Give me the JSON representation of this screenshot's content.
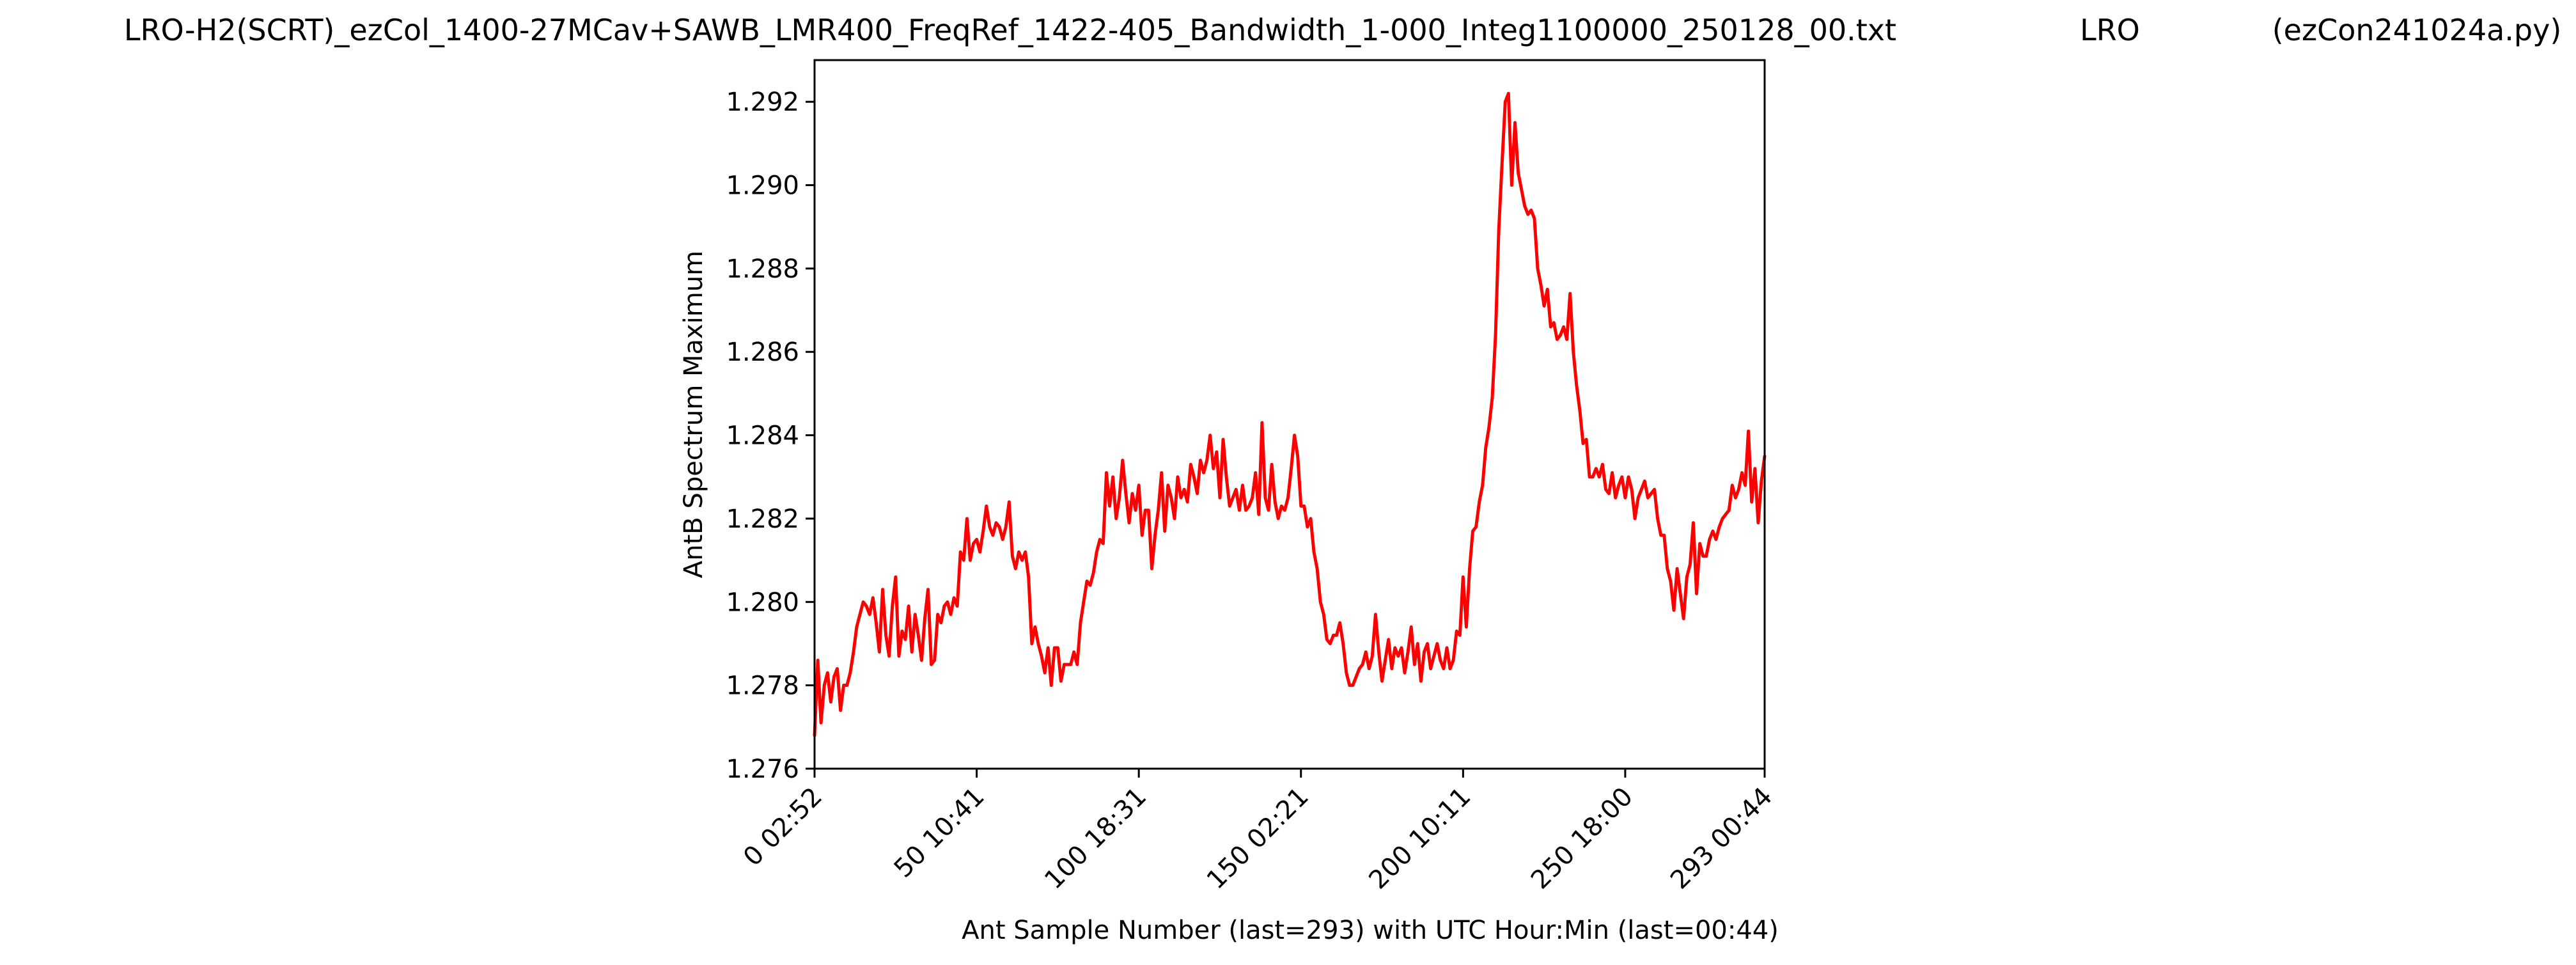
{
  "header": {
    "filename": "LRO-H2(SCRT)_ezCol_1400-27MCav+SAWB_LMR400_FreqRef_1422-405_Bandwidth_1-000_Integ1100000_250128_00.txt",
    "station": "LRO",
    "program": "(ezCon241024a.py)"
  },
  "chart_data": {
    "type": "line",
    "xlabel": "Ant Sample Number (last=293) with UTC Hour:Min (last=00:44)",
    "ylabel": "AntB Spectrum Maximum",
    "xlim": [
      0,
      293
    ],
    "ylim": [
      1.276,
      1.293
    ],
    "x_ticks": [
      {
        "value": 0,
        "label": "0  02:52"
      },
      {
        "value": 50,
        "label": "50  10:41"
      },
      {
        "value": 100,
        "label": "100  18:31"
      },
      {
        "value": 150,
        "label": "150  02:21"
      },
      {
        "value": 200,
        "label": "200  10:11"
      },
      {
        "value": 250,
        "label": "250  18:00"
      },
      {
        "value": 293,
        "label": "293  00:44"
      }
    ],
    "y_ticks": [
      {
        "value": 1.276,
        "label": "1.276"
      },
      {
        "value": 1.278,
        "label": "1.278"
      },
      {
        "value": 1.28,
        "label": "1.280"
      },
      {
        "value": 1.282,
        "label": "1.282"
      },
      {
        "value": 1.284,
        "label": "1.284"
      },
      {
        "value": 1.286,
        "label": "1.286"
      },
      {
        "value": 1.288,
        "label": "1.288"
      },
      {
        "value": 1.29,
        "label": "1.290"
      },
      {
        "value": 1.292,
        "label": "1.292"
      }
    ],
    "grid": false,
    "series": [
      {
        "color": "#ff0000",
        "points": [
          [
            0,
            1.2768
          ],
          [
            1,
            1.2786
          ],
          [
            2,
            1.2771
          ],
          [
            3,
            1.278
          ],
          [
            4,
            1.2783
          ],
          [
            5,
            1.2776
          ],
          [
            6,
            1.2782
          ],
          [
            7,
            1.2784
          ],
          [
            8,
            1.2774
          ],
          [
            9,
            1.278
          ],
          [
            10,
            1.278
          ],
          [
            11,
            1.2783
          ],
          [
            12,
            1.2788
          ],
          [
            13,
            1.2794
          ],
          [
            14,
            1.2797
          ],
          [
            15,
            1.28
          ],
          [
            16,
            1.2799
          ],
          [
            17,
            1.2797
          ],
          [
            18,
            1.2801
          ],
          [
            19,
            1.2795
          ],
          [
            20,
            1.2788
          ],
          [
            21,
            1.2803
          ],
          [
            22,
            1.2792
          ],
          [
            23,
            1.2787
          ],
          [
            24,
            1.2799
          ],
          [
            25,
            1.2806
          ],
          [
            26,
            1.2787
          ],
          [
            27,
            1.2793
          ],
          [
            28,
            1.2791
          ],
          [
            29,
            1.2799
          ],
          [
            30,
            1.2788
          ],
          [
            31,
            1.2797
          ],
          [
            32,
            1.2792
          ],
          [
            33,
            1.2786
          ],
          [
            34,
            1.2796
          ],
          [
            35,
            1.2803
          ],
          [
            36,
            1.2785
          ],
          [
            37,
            1.2786
          ],
          [
            38,
            1.2797
          ],
          [
            39,
            1.2795
          ],
          [
            40,
            1.2799
          ],
          [
            41,
            1.28
          ],
          [
            42,
            1.2797
          ],
          [
            43,
            1.2801
          ],
          [
            44,
            1.2799
          ],
          [
            45,
            1.2812
          ],
          [
            46,
            1.281
          ],
          [
            47,
            1.282
          ],
          [
            48,
            1.281
          ],
          [
            49,
            1.2814
          ],
          [
            50,
            1.2815
          ],
          [
            51,
            1.2812
          ],
          [
            52,
            1.2817
          ],
          [
            53,
            1.2823
          ],
          [
            54,
            1.2818
          ],
          [
            55,
            1.2816
          ],
          [
            56,
            1.2819
          ],
          [
            57,
            1.2818
          ],
          [
            58,
            1.2815
          ],
          [
            59,
            1.2818
          ],
          [
            60,
            1.2824
          ],
          [
            61,
            1.2811
          ],
          [
            62,
            1.2808
          ],
          [
            63,
            1.2812
          ],
          [
            64,
            1.281
          ],
          [
            65,
            1.2812
          ],
          [
            66,
            1.2806
          ],
          [
            67,
            1.279
          ],
          [
            68,
            1.2794
          ],
          [
            69,
            1.279
          ],
          [
            70,
            1.2787
          ],
          [
            71,
            1.2783
          ],
          [
            72,
            1.2789
          ],
          [
            73,
            1.278
          ],
          [
            74,
            1.2789
          ],
          [
            75,
            1.2789
          ],
          [
            76,
            1.2781
          ],
          [
            77,
            1.2785
          ],
          [
            78,
            1.2785
          ],
          [
            79,
            1.2785
          ],
          [
            80,
            1.2788
          ],
          [
            81,
            1.2785
          ],
          [
            82,
            1.2795
          ],
          [
            83,
            1.28
          ],
          [
            84,
            1.2805
          ],
          [
            85,
            1.2804
          ],
          [
            86,
            1.2807
          ],
          [
            87,
            1.2812
          ],
          [
            88,
            1.2815
          ],
          [
            89,
            1.2814
          ],
          [
            90,
            1.2831
          ],
          [
            91,
            1.2823
          ],
          [
            92,
            1.283
          ],
          [
            93,
            1.282
          ],
          [
            94,
            1.2825
          ],
          [
            95,
            1.2834
          ],
          [
            96,
            1.2826
          ],
          [
            97,
            1.2819
          ],
          [
            98,
            1.2826
          ],
          [
            99,
            1.2822
          ],
          [
            100,
            1.2828
          ],
          [
            101,
            1.2816
          ],
          [
            102,
            1.2822
          ],
          [
            103,
            1.2822
          ],
          [
            104,
            1.2808
          ],
          [
            105,
            1.2816
          ],
          [
            106,
            1.2822
          ],
          [
            107,
            1.2831
          ],
          [
            108,
            1.2817
          ],
          [
            109,
            1.2828
          ],
          [
            110,
            1.2825
          ],
          [
            111,
            1.282
          ],
          [
            112,
            1.283
          ],
          [
            113,
            1.2825
          ],
          [
            114,
            1.2827
          ],
          [
            115,
            1.2824
          ],
          [
            116,
            1.2833
          ],
          [
            117,
            1.283
          ],
          [
            118,
            1.2826
          ],
          [
            119,
            1.2834
          ],
          [
            120,
            1.2831
          ],
          [
            121,
            1.2834
          ],
          [
            122,
            1.284
          ],
          [
            123,
            1.2832
          ],
          [
            124,
            1.2836
          ],
          [
            125,
            1.2825
          ],
          [
            126,
            1.2839
          ],
          [
            127,
            1.283
          ],
          [
            128,
            1.2823
          ],
          [
            129,
            1.2825
          ],
          [
            130,
            1.2827
          ],
          [
            131,
            1.2822
          ],
          [
            132,
            1.2828
          ],
          [
            133,
            1.2822
          ],
          [
            134,
            1.2823
          ],
          [
            135,
            1.2825
          ],
          [
            136,
            1.2831
          ],
          [
            137,
            1.2821
          ],
          [
            138,
            1.2843
          ],
          [
            139,
            1.2825
          ],
          [
            140,
            1.2822
          ],
          [
            141,
            1.2833
          ],
          [
            142,
            1.2824
          ],
          [
            143,
            1.282
          ],
          [
            144,
            1.2823
          ],
          [
            145,
            1.2822
          ],
          [
            146,
            1.2825
          ],
          [
            147,
            1.2832
          ],
          [
            148,
            1.284
          ],
          [
            149,
            1.2835
          ],
          [
            150,
            1.2823
          ],
          [
            151,
            1.2823
          ],
          [
            152,
            1.2818
          ],
          [
            153,
            1.282
          ],
          [
            154,
            1.2812
          ],
          [
            155,
            1.2808
          ],
          [
            156,
            1.28
          ],
          [
            157,
            1.2797
          ],
          [
            158,
            1.2791
          ],
          [
            159,
            1.279
          ],
          [
            160,
            1.2792
          ],
          [
            161,
            1.2792
          ],
          [
            162,
            1.2795
          ],
          [
            163,
            1.279
          ],
          [
            164,
            1.2783
          ],
          [
            165,
            1.278
          ],
          [
            166,
            1.278
          ],
          [
            167,
            1.2782
          ],
          [
            168,
            1.2784
          ],
          [
            169,
            1.2785
          ],
          [
            170,
            1.2788
          ],
          [
            171,
            1.2784
          ],
          [
            172,
            1.2787
          ],
          [
            173,
            1.2797
          ],
          [
            174,
            1.2788
          ],
          [
            175,
            1.2781
          ],
          [
            176,
            1.2786
          ],
          [
            177,
            1.2791
          ],
          [
            178,
            1.2784
          ],
          [
            179,
            1.2789
          ],
          [
            180,
            1.2787
          ],
          [
            181,
            1.2789
          ],
          [
            182,
            1.2783
          ],
          [
            183,
            1.2788
          ],
          [
            184,
            1.2794
          ],
          [
            185,
            1.2785
          ],
          [
            186,
            1.279
          ],
          [
            187,
            1.2781
          ],
          [
            188,
            1.2788
          ],
          [
            189,
            1.279
          ],
          [
            190,
            1.2784
          ],
          [
            191,
            1.2787
          ],
          [
            192,
            1.279
          ],
          [
            193,
            1.2786
          ],
          [
            194,
            1.2784
          ],
          [
            195,
            1.2789
          ],
          [
            196,
            1.2784
          ],
          [
            197,
            1.2786
          ],
          [
            198,
            1.2793
          ],
          [
            199,
            1.2792
          ],
          [
            200,
            1.2806
          ],
          [
            201,
            1.2794
          ],
          [
            202,
            1.2808
          ],
          [
            203,
            1.2817
          ],
          [
            204,
            1.2818
          ],
          [
            205,
            1.2824
          ],
          [
            206,
            1.2828
          ],
          [
            207,
            1.2837
          ],
          [
            208,
            1.2842
          ],
          [
            209,
            1.2849
          ],
          [
            210,
            1.2864
          ],
          [
            211,
            1.2889
          ],
          [
            212,
            1.2905
          ],
          [
            213,
            1.292
          ],
          [
            214,
            1.2922
          ],
          [
            215,
            1.29
          ],
          [
            216,
            1.2915
          ],
          [
            217,
            1.2903
          ],
          [
            218,
            1.2899
          ],
          [
            219,
            1.2895
          ],
          [
            220,
            1.2893
          ],
          [
            221,
            1.2894
          ],
          [
            222,
            1.2892
          ],
          [
            223,
            1.288
          ],
          [
            224,
            1.2876
          ],
          [
            225,
            1.2871
          ],
          [
            226,
            1.2875
          ],
          [
            227,
            1.2866
          ],
          [
            228,
            1.2867
          ],
          [
            229,
            1.2863
          ],
          [
            230,
            1.2864
          ],
          [
            231,
            1.2866
          ],
          [
            232,
            1.2863
          ],
          [
            233,
            1.2874
          ],
          [
            234,
            1.286
          ],
          [
            235,
            1.2852
          ],
          [
            236,
            1.2846
          ],
          [
            237,
            1.2838
          ],
          [
            238,
            1.2839
          ],
          [
            239,
            1.283
          ],
          [
            240,
            1.283
          ],
          [
            241,
            1.2832
          ],
          [
            242,
            1.283
          ],
          [
            243,
            1.2833
          ],
          [
            244,
            1.2827
          ],
          [
            245,
            1.2826
          ],
          [
            246,
            1.2831
          ],
          [
            247,
            1.2825
          ],
          [
            248,
            1.2828
          ],
          [
            249,
            1.283
          ],
          [
            250,
            1.2825
          ],
          [
            251,
            1.283
          ],
          [
            252,
            1.2827
          ],
          [
            253,
            1.282
          ],
          [
            254,
            1.2825
          ],
          [
            255,
            1.2827
          ],
          [
            256,
            1.2829
          ],
          [
            257,
            1.2825
          ],
          [
            258,
            1.2826
          ],
          [
            259,
            1.2827
          ],
          [
            260,
            1.282
          ],
          [
            261,
            1.2816
          ],
          [
            262,
            1.2816
          ],
          [
            263,
            1.2808
          ],
          [
            264,
            1.2805
          ],
          [
            265,
            1.2798
          ],
          [
            266,
            1.2808
          ],
          [
            267,
            1.2802
          ],
          [
            268,
            1.2796
          ],
          [
            269,
            1.2806
          ],
          [
            270,
            1.2809
          ],
          [
            271,
            1.2819
          ],
          [
            272,
            1.2802
          ],
          [
            273,
            1.2814
          ],
          [
            274,
            1.2811
          ],
          [
            275,
            1.2811
          ],
          [
            276,
            1.2815
          ],
          [
            277,
            1.2817
          ],
          [
            278,
            1.2815
          ],
          [
            279,
            1.2818
          ],
          [
            280,
            1.282
          ],
          [
            281,
            1.2821
          ],
          [
            282,
            1.2822
          ],
          [
            283,
            1.2828
          ],
          [
            284,
            1.2825
          ],
          [
            285,
            1.2827
          ],
          [
            286,
            1.2831
          ],
          [
            287,
            1.2828
          ],
          [
            288,
            1.2841
          ],
          [
            289,
            1.2824
          ],
          [
            290,
            1.2832
          ],
          [
            291,
            1.2819
          ],
          [
            292,
            1.2829
          ],
          [
            293,
            1.2835
          ]
        ]
      }
    ]
  }
}
